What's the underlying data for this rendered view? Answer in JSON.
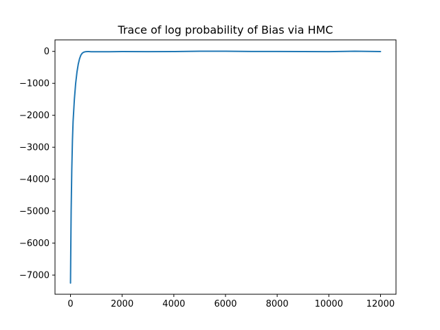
{
  "chart_data": {
    "type": "line",
    "title": "Trace of log probability of Bias via HMC",
    "xlabel": "",
    "ylabel": "",
    "xlim": [
      -600,
      12600
    ],
    "ylim": [
      -7600,
      360
    ],
    "xticks": [
      0,
      2000,
      4000,
      6000,
      8000,
      10000,
      12000
    ],
    "xtick_labels": [
      "0",
      "2000",
      "4000",
      "6000",
      "8000",
      "10000",
      "12000"
    ],
    "yticks": [
      0,
      -1000,
      -2000,
      -3000,
      -4000,
      -5000,
      -6000,
      -7000
    ],
    "ytick_labels": [
      "0",
      "−1000",
      "−2000",
      "−3000",
      "−4000",
      "−5000",
      "−6000",
      "−7000"
    ],
    "grid": false,
    "series": [
      {
        "color": "#1f77b4",
        "x": [
          0,
          10,
          25,
          50,
          75,
          100,
          150,
          200,
          250,
          300,
          350,
          400,
          450,
          500,
          550,
          600,
          700,
          800,
          1000,
          1500,
          2000,
          3000,
          4000,
          5000,
          6000,
          7000,
          8000,
          9000,
          10000,
          11000,
          12000
        ],
        "y": [
          -7250,
          -6300,
          -5000,
          -3700,
          -2800,
          -2200,
          -1500,
          -1000,
          -650,
          -400,
          -230,
          -120,
          -60,
          -30,
          -15,
          -8,
          -5,
          -12,
          -10,
          -12,
          -5,
          -8,
          -6,
          4,
          5,
          -2,
          -4,
          -5,
          -8,
          6,
          -5
        ]
      }
    ]
  }
}
